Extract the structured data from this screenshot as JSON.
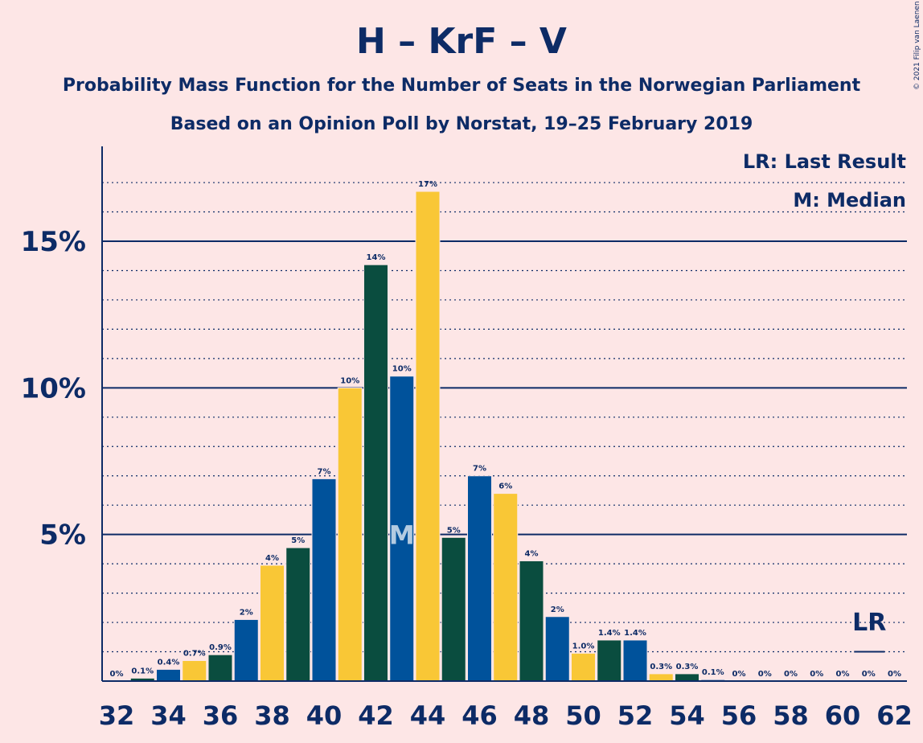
{
  "copyright": "© 2021 Filip van Laenen",
  "colors": {
    "background": "#fde6e6",
    "text": "#0d2b66",
    "axis": "#0d2b66",
    "series": [
      "#0a4d3f",
      "#00529b",
      "#f9c736"
    ]
  },
  "chart_data": {
    "type": "bar",
    "title": "H – KrF – V",
    "subtitle": "Probability Mass Function for the Number of Seats in the Norwegian Parliament",
    "subtitle2": "Based on an Opinion Poll by Norstat, 19–25 February 2019",
    "xlabel": "",
    "ylabel": "",
    "ylim": [
      0,
      18
    ],
    "xlim": [
      32,
      62
    ],
    "x_tick_labels": [
      "32",
      "34",
      "36",
      "38",
      "40",
      "42",
      "44",
      "46",
      "48",
      "50",
      "52",
      "54",
      "56",
      "58",
      "60",
      "62"
    ],
    "y_ticks": [
      {
        "value": 5,
        "label": "5%"
      },
      {
        "value": 10,
        "label": "10%"
      },
      {
        "value": 15,
        "label": "15%"
      }
    ],
    "grid": "dotted every 1%, solid at 5%, 10%, 15%",
    "legend": {
      "position": "top-right",
      "entries": [
        "LR: Last Result",
        "M: Median"
      ]
    },
    "markers": {
      "median": {
        "seat": 43,
        "label": "M"
      },
      "last_result": {
        "seat": 61,
        "label": "LR"
      }
    },
    "bars": [
      {
        "seat": 32,
        "value": 0,
        "label": "0%"
      },
      {
        "seat": 33,
        "value": 0.1,
        "label": "0.1%"
      },
      {
        "seat": 34,
        "value": 0.4,
        "label": "0.4%"
      },
      {
        "seat": 35,
        "value": 0.7,
        "label": "0.7%"
      },
      {
        "seat": 36,
        "value": 0.9,
        "label": "0.9%"
      },
      {
        "seat": 37,
        "value": 2.1,
        "label": "2%"
      },
      {
        "seat": 38,
        "value": 3.95,
        "label": "4%"
      },
      {
        "seat": 39,
        "value": 4.55,
        "label": "5%"
      },
      {
        "seat": 40,
        "value": 6.9,
        "label": "7%"
      },
      {
        "seat": 41,
        "value": 10.0,
        "label": "10%"
      },
      {
        "seat": 42,
        "value": 14.2,
        "label": "14%"
      },
      {
        "seat": 43,
        "value": 10.4,
        "label": "10%"
      },
      {
        "seat": 44,
        "value": 16.7,
        "label": "17%"
      },
      {
        "seat": 45,
        "value": 4.9,
        "label": "5%"
      },
      {
        "seat": 46,
        "value": 7.0,
        "label": "7%"
      },
      {
        "seat": 47,
        "value": 6.4,
        "label": "6%"
      },
      {
        "seat": 48,
        "value": 4.1,
        "label": "4%"
      },
      {
        "seat": 49,
        "value": 2.2,
        "label": "2%"
      },
      {
        "seat": 50,
        "value": 0.95,
        "label": "1.0%"
      },
      {
        "seat": 51,
        "value": 1.4,
        "label": "1.4%"
      },
      {
        "seat": 52,
        "value": 1.4,
        "label": "1.4%"
      },
      {
        "seat": 53,
        "value": 0.25,
        "label": "0.3%"
      },
      {
        "seat": 54,
        "value": 0.25,
        "label": "0.3%"
      },
      {
        "seat": 55,
        "value": 0.05,
        "label": "0.1%"
      },
      {
        "seat": 56,
        "value": 0,
        "label": "0%"
      },
      {
        "seat": 57,
        "value": 0,
        "label": "0%"
      },
      {
        "seat": 58,
        "value": 0,
        "label": "0%"
      },
      {
        "seat": 59,
        "value": 0,
        "label": "0%"
      },
      {
        "seat": 60,
        "value": 0,
        "label": "0%"
      },
      {
        "seat": 61,
        "value": 0,
        "label": "0%"
      },
      {
        "seat": 62,
        "value": 0,
        "label": "0%"
      }
    ]
  }
}
